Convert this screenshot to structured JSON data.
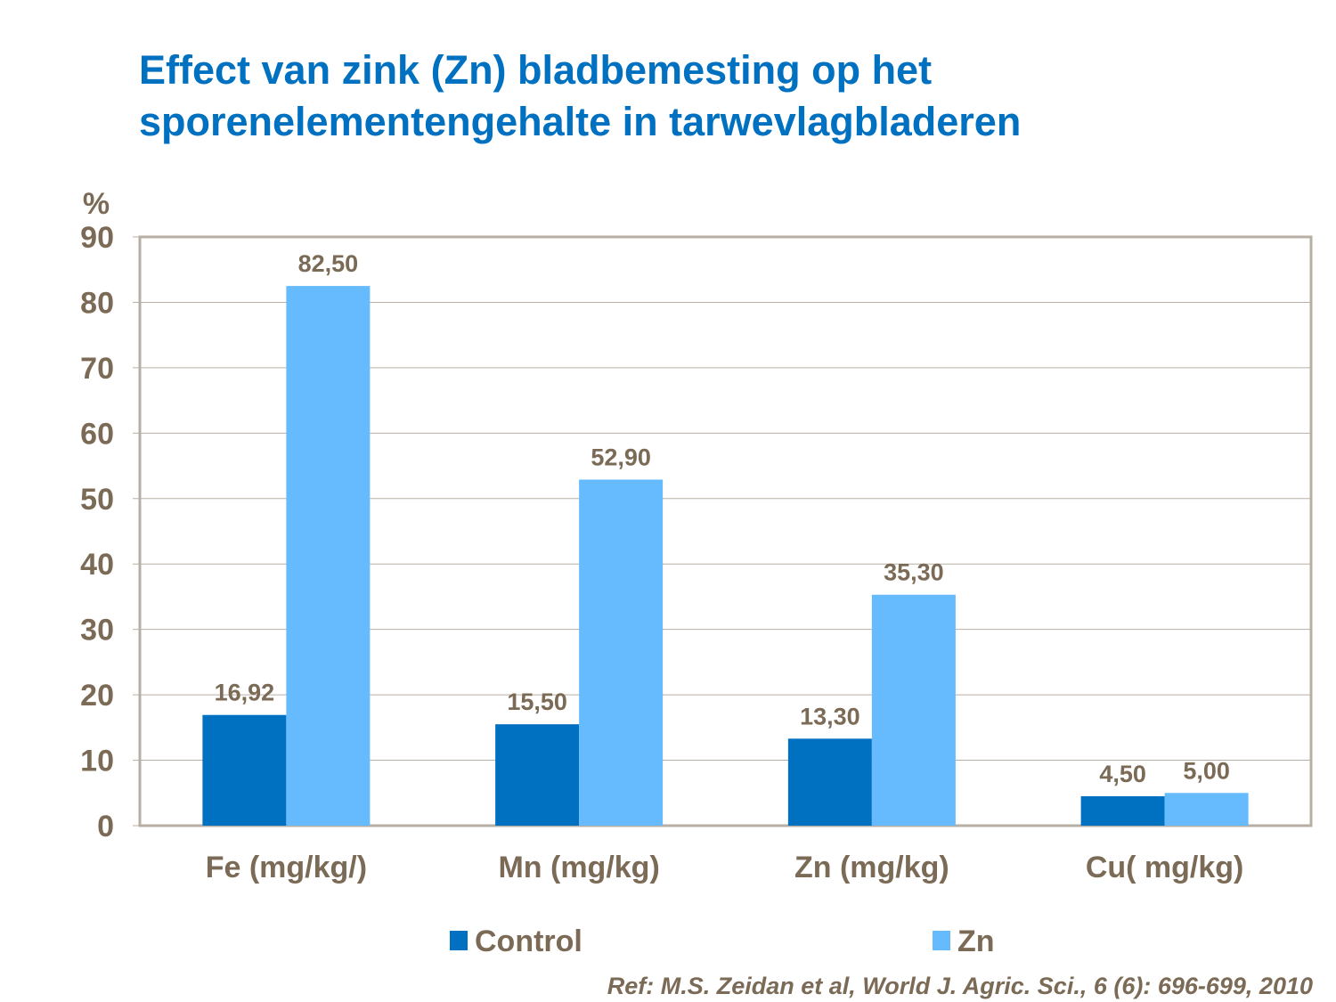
{
  "chart_data": {
    "type": "bar",
    "title_lines": [
      "Effect van zink (Zn) bladbemesting op het",
      "sporenelementengehalte in tarwevlagbladeren"
    ],
    "ylabel": "%",
    "xlabel": "",
    "ylim": [
      0,
      90
    ],
    "yticks": [
      0,
      10,
      20,
      30,
      40,
      50,
      60,
      70,
      80,
      90
    ],
    "grid": true,
    "legend_position": "bottom",
    "categories": [
      "Fe (mg/kg/)",
      "Mn (mg/kg)",
      "Zn (mg/kg)",
      "Cu( mg/kg)"
    ],
    "series": [
      {
        "name": "Control",
        "color": "#0070C0",
        "values": [
          16.92,
          15.5,
          13.3,
          4.5
        ],
        "labels": [
          "16,92",
          "15,50",
          "13,30",
          "4,50"
        ]
      },
      {
        "name": "Zn",
        "color": "#66BBFF",
        "values": [
          82.5,
          52.9,
          35.3,
          5.0
        ],
        "labels": [
          "82,50",
          "52,90",
          "35,30",
          "5,00"
        ]
      }
    ],
    "text_color": "#7B6A55"
  },
  "reference": "Ref: M.S. Zeidan et al, World J. Agric. Sci., 6 (6): 696-699, 2010"
}
